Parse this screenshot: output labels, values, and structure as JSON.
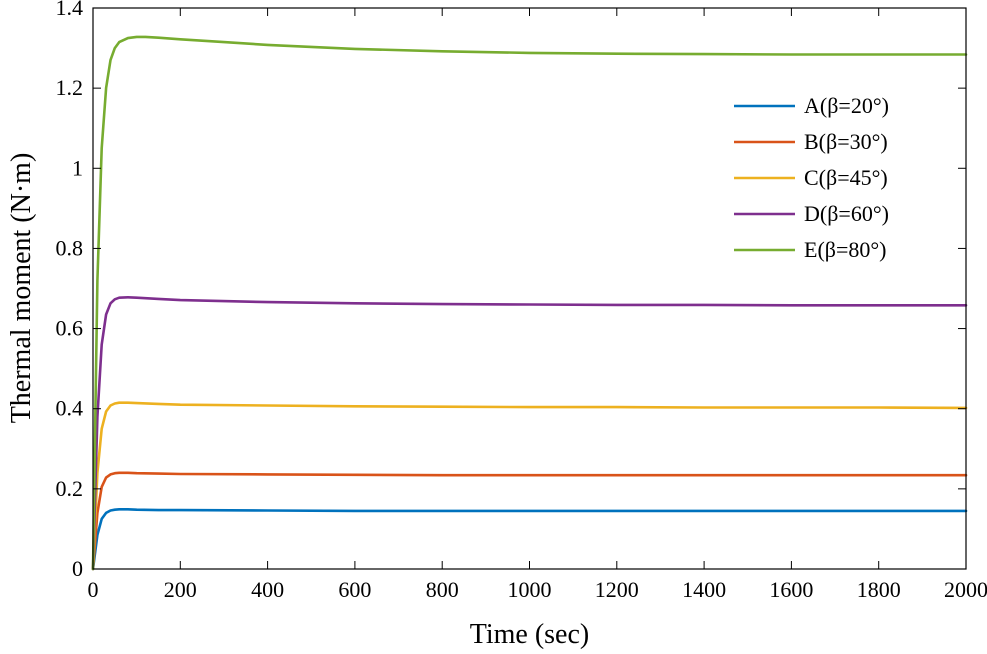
{
  "chart_data": {
    "type": "line",
    "title": "",
    "xlabel": "Time (sec)",
    "ylabel": "Thermal moment (N·m)",
    "xlim": [
      0,
      2000
    ],
    "ylim": [
      0,
      1.4
    ],
    "xticks": [
      0,
      200,
      400,
      600,
      800,
      1000,
      1200,
      1400,
      1600,
      1800,
      2000
    ],
    "yticks": [
      0,
      0.2,
      0.4,
      0.6,
      0.8,
      1,
      1.2,
      1.4
    ],
    "legend_position": "top-right",
    "series": [
      {
        "name": "A(β=20°)",
        "color": "#0072BD",
        "x": [
          0,
          10,
          20,
          30,
          40,
          50,
          60,
          80,
          100,
          150,
          200,
          400,
          600,
          800,
          1000,
          1200,
          1400,
          1600,
          1800,
          2000
        ],
        "y": [
          0,
          0.085,
          0.125,
          0.14,
          0.146,
          0.148,
          0.149,
          0.149,
          0.148,
          0.147,
          0.147,
          0.146,
          0.145,
          0.145,
          0.145,
          0.145,
          0.145,
          0.145,
          0.145,
          0.145
        ]
      },
      {
        "name": "B(β=30°)",
        "color": "#D95319",
        "x": [
          0,
          10,
          20,
          30,
          40,
          50,
          60,
          80,
          100,
          150,
          200,
          400,
          600,
          800,
          1000,
          1200,
          1400,
          1600,
          1800,
          2000
        ],
        "y": [
          0,
          0.14,
          0.205,
          0.228,
          0.236,
          0.239,
          0.24,
          0.24,
          0.239,
          0.238,
          0.237,
          0.236,
          0.235,
          0.234,
          0.234,
          0.234,
          0.234,
          0.234,
          0.234,
          0.234
        ]
      },
      {
        "name": "C(β=45°)",
        "color": "#EDB120",
        "x": [
          0,
          10,
          20,
          30,
          40,
          50,
          60,
          80,
          100,
          150,
          200,
          400,
          600,
          800,
          1000,
          1200,
          1400,
          1600,
          1800,
          2000
        ],
        "y": [
          0,
          0.24,
          0.35,
          0.393,
          0.408,
          0.413,
          0.415,
          0.415,
          0.414,
          0.412,
          0.41,
          0.408,
          0.406,
          0.405,
          0.404,
          0.404,
          0.403,
          0.403,
          0.403,
          0.402
        ]
      },
      {
        "name": "D(β=60°)",
        "color": "#7E2F8E",
        "x": [
          0,
          10,
          20,
          30,
          40,
          50,
          60,
          80,
          100,
          150,
          200,
          400,
          600,
          800,
          1000,
          1200,
          1400,
          1600,
          1800,
          2000
        ],
        "y": [
          0,
          0.38,
          0.56,
          0.635,
          0.663,
          0.673,
          0.677,
          0.678,
          0.677,
          0.674,
          0.671,
          0.666,
          0.663,
          0.661,
          0.66,
          0.659,
          0.659,
          0.658,
          0.658,
          0.658
        ]
      },
      {
        "name": "E(β=80°)",
        "color": "#77AC30",
        "x": [
          0,
          10,
          20,
          30,
          40,
          50,
          60,
          80,
          100,
          120,
          150,
          200,
          300,
          400,
          600,
          800,
          1000,
          1200,
          1400,
          1600,
          1800,
          2000
        ],
        "y": [
          0,
          0.72,
          1.05,
          1.2,
          1.27,
          1.3,
          1.315,
          1.325,
          1.328,
          1.328,
          1.326,
          1.322,
          1.315,
          1.308,
          1.298,
          1.292,
          1.288,
          1.286,
          1.285,
          1.284,
          1.284,
          1.284
        ]
      }
    ]
  }
}
